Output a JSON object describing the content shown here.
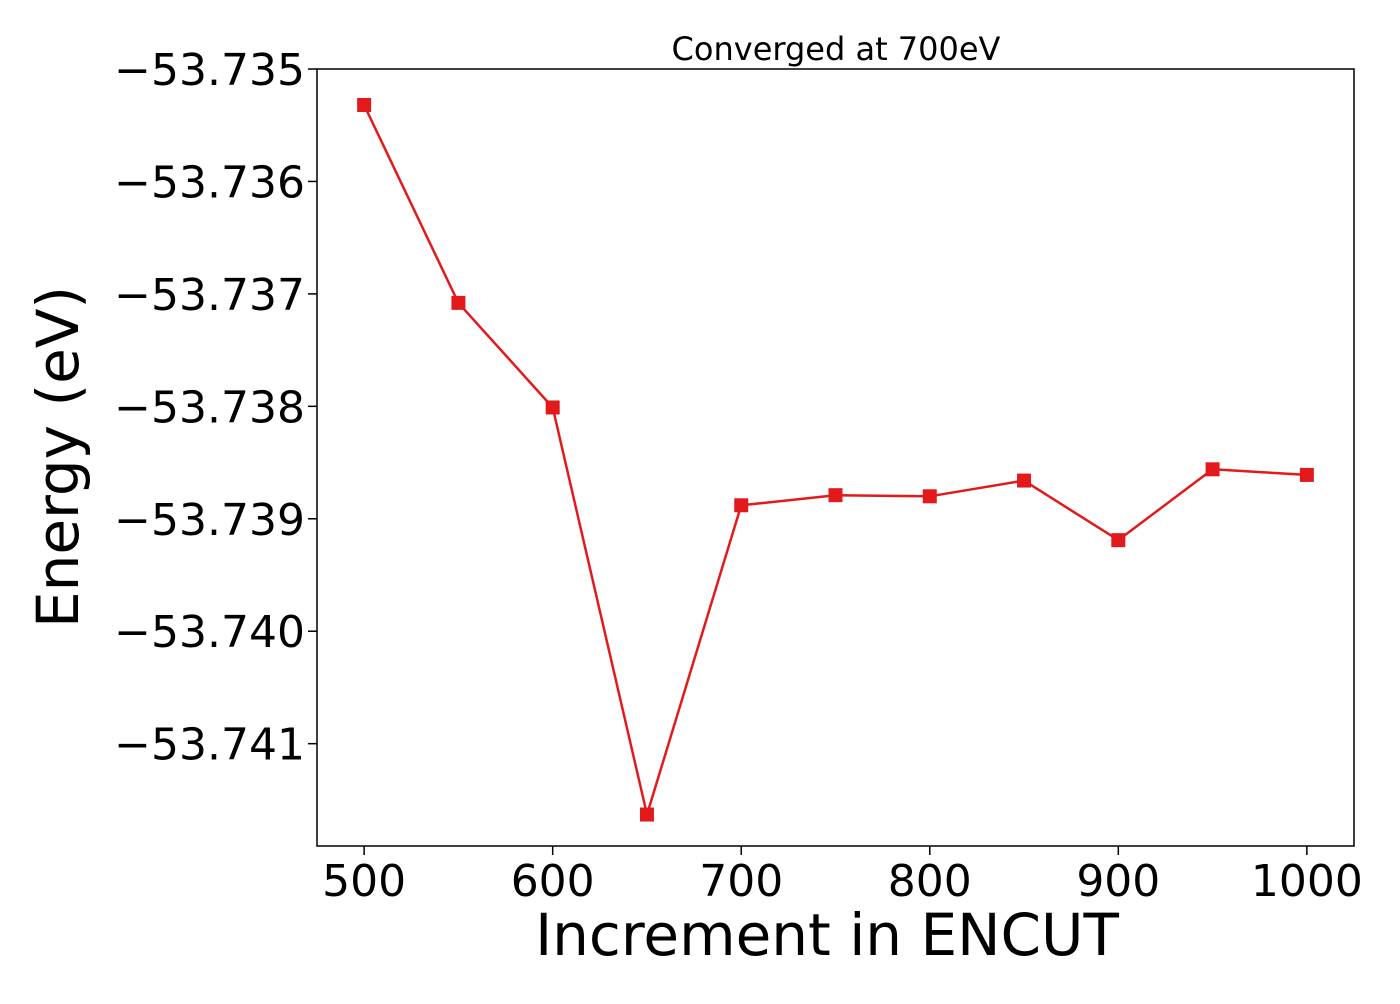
{
  "chart_data": {
    "type": "line",
    "title": "Converged at 700eV",
    "xlabel": "Increment in ENCUT",
    "ylabel": "Energy (eV)",
    "xlim": [
      475,
      1025
    ],
    "ylim": [
      -53.74191,
      -53.735
    ],
    "x_ticks": [
      500,
      600,
      700,
      800,
      900,
      1000
    ],
    "x_tick_labels": [
      "500",
      "600",
      "700",
      "800",
      "900",
      "1000"
    ],
    "y_ticks": [
      -53.735,
      -53.736,
      -53.737,
      -53.738,
      -53.739,
      -53.74,
      -53.741
    ],
    "y_tick_labels": [
      "−53.735",
      "−53.736",
      "−53.737",
      "−53.738",
      "−53.739",
      "−53.740",
      "−53.741"
    ],
    "grid": false,
    "legend": "none",
    "series": [
      {
        "color": "#e31a1c",
        "marker": "square",
        "x": [
          500,
          550,
          600,
          650,
          700,
          750,
          800,
          850,
          900,
          950,
          1000
        ],
        "y": [
          -53.73532,
          -53.73708,
          -53.73801,
          -53.74163,
          -53.73888,
          -53.73879,
          -53.7388,
          -53.73866,
          -53.73919,
          -53.73856,
          -53.73861
        ]
      }
    ]
  }
}
